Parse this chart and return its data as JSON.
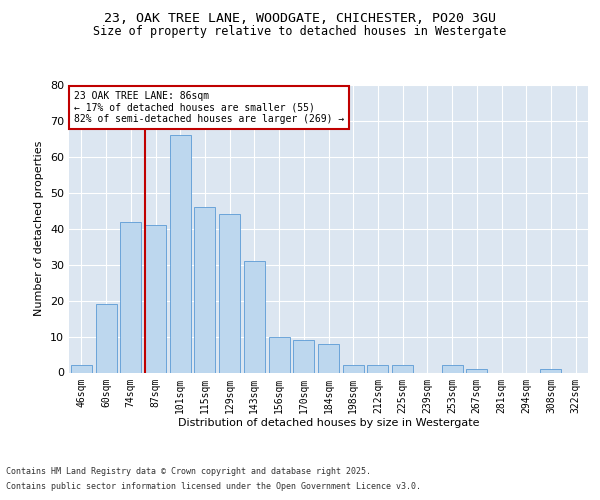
{
  "title_line1": "23, OAK TREE LANE, WOODGATE, CHICHESTER, PO20 3GU",
  "title_line2": "Size of property relative to detached houses in Westergate",
  "xlabel": "Distribution of detached houses by size in Westergate",
  "ylabel": "Number of detached properties",
  "categories": [
    "46sqm",
    "60sqm",
    "74sqm",
    "87sqm",
    "101sqm",
    "115sqm",
    "129sqm",
    "143sqm",
    "156sqm",
    "170sqm",
    "184sqm",
    "198sqm",
    "212sqm",
    "225sqm",
    "239sqm",
    "253sqm",
    "267sqm",
    "281sqm",
    "294sqm",
    "308sqm",
    "322sqm"
  ],
  "values": [
    2,
    19,
    42,
    41,
    66,
    46,
    44,
    31,
    10,
    9,
    8,
    2,
    2,
    2,
    0,
    2,
    1,
    0,
    0,
    1,
    0
  ],
  "bar_color": "#bdd7ee",
  "bar_edge_color": "#5b9bd5",
  "vline_color": "#c00000",
  "annotation_text": "23 OAK TREE LANE: 86sqm\n← 17% of detached houses are smaller (55)\n82% of semi-detached houses are larger (269) →",
  "annotation_box_color": "#ffffff",
  "annotation_box_edge": "#c00000",
  "ylim": [
    0,
    80
  ],
  "yticks": [
    0,
    10,
    20,
    30,
    40,
    50,
    60,
    70,
    80
  ],
  "footer_line1": "Contains HM Land Registry data © Crown copyright and database right 2025.",
  "footer_line2": "Contains public sector information licensed under the Open Government Licence v3.0.",
  "plot_bg_color": "#dce6f1",
  "fig_bg_color": "#ffffff",
  "grid_color": "#ffffff"
}
